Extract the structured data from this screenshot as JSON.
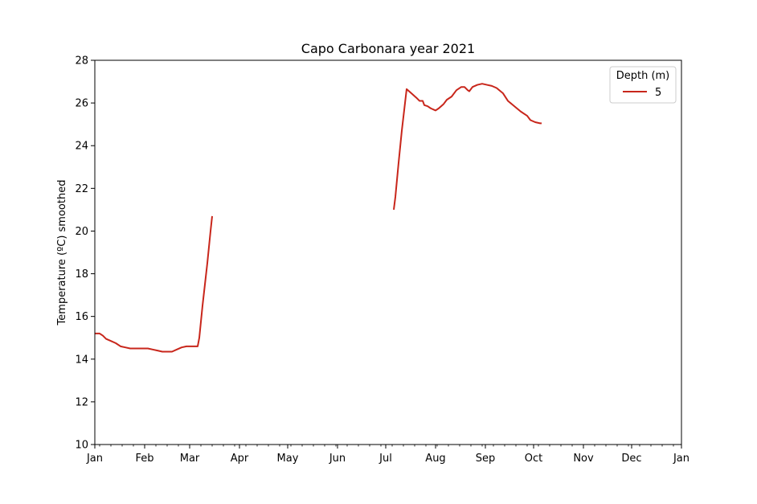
{
  "chart_data": {
    "type": "line",
    "title": "Capo Carbonara year 2021",
    "xlabel": "",
    "ylabel": "Temperature (ºC) smoothed",
    "ylim": [
      10,
      28
    ],
    "xlim": [
      "2021-01-01",
      "2022-01-01"
    ],
    "y_ticks": [
      10,
      12,
      14,
      16,
      18,
      20,
      22,
      24,
      26,
      28
    ],
    "x_ticks": [
      {
        "date": "2021-01-01",
        "label": "Jan"
      },
      {
        "date": "2021-02-01",
        "label": "Feb"
      },
      {
        "date": "2021-03-01",
        "label": "Mar"
      },
      {
        "date": "2021-04-01",
        "label": "Apr"
      },
      {
        "date": "2021-05-01",
        "label": "May"
      },
      {
        "date": "2021-06-01",
        "label": "Jun"
      },
      {
        "date": "2021-07-01",
        "label": "Jul"
      },
      {
        "date": "2021-08-01",
        "label": "Aug"
      },
      {
        "date": "2021-09-01",
        "label": "Sep"
      },
      {
        "date": "2021-10-01",
        "label": "Oct"
      },
      {
        "date": "2021-11-01",
        "label": "Nov"
      },
      {
        "date": "2021-12-01",
        "label": "Dec"
      },
      {
        "date": "2022-01-01",
        "label": "Jan"
      }
    ],
    "grid": false,
    "legend": {
      "title": "Depth (m)",
      "placement": "top-right"
    },
    "series": [
      {
        "name": "5",
        "color": "#c8261b",
        "segments": [
          [
            [
              "2021-01-01",
              15.2
            ],
            [
              "2021-01-04",
              15.2
            ],
            [
              "2021-01-06",
              15.1
            ],
            [
              "2021-01-08",
              14.95
            ],
            [
              "2021-01-11",
              14.85
            ],
            [
              "2021-01-14",
              14.75
            ],
            [
              "2021-01-17",
              14.6
            ],
            [
              "2021-01-20",
              14.55
            ],
            [
              "2021-01-23",
              14.5
            ],
            [
              "2021-01-26",
              14.5
            ],
            [
              "2021-01-29",
              14.5
            ],
            [
              "2021-02-01",
              14.5
            ],
            [
              "2021-02-03",
              14.5
            ],
            [
              "2021-02-06",
              14.45
            ],
            [
              "2021-02-09",
              14.4
            ],
            [
              "2021-02-12",
              14.35
            ],
            [
              "2021-02-15",
              14.35
            ],
            [
              "2021-02-18",
              14.35
            ],
            [
              "2021-02-21",
              14.45
            ],
            [
              "2021-02-24",
              14.55
            ],
            [
              "2021-02-27",
              14.6
            ],
            [
              "2021-03-02",
              14.6
            ],
            [
              "2021-03-06",
              14.6
            ],
            [
              "2021-03-07",
              15.0
            ],
            [
              "2021-03-09",
              16.5
            ],
            [
              "2021-03-12",
              18.5
            ],
            [
              "2021-03-14",
              20.0
            ],
            [
              "2021-03-15",
              20.7
            ]
          ],
          [
            [
              "2021-07-06",
              21.0
            ],
            [
              "2021-07-07",
              21.6
            ],
            [
              "2021-07-09",
              23.2
            ],
            [
              "2021-07-11",
              24.7
            ],
            [
              "2021-07-14",
              26.65
            ],
            [
              "2021-07-17",
              26.45
            ],
            [
              "2021-07-20",
              26.25
            ],
            [
              "2021-07-22",
              26.1
            ],
            [
              "2021-07-24",
              26.1
            ],
            [
              "2021-07-25",
              25.9
            ],
            [
              "2021-07-27",
              25.85
            ],
            [
              "2021-07-29",
              25.75
            ],
            [
              "2021-08-01",
              25.65
            ],
            [
              "2021-08-03",
              25.75
            ],
            [
              "2021-08-06",
              25.95
            ],
            [
              "2021-08-08",
              26.15
            ],
            [
              "2021-08-11",
              26.3
            ],
            [
              "2021-08-14",
              26.6
            ],
            [
              "2021-08-17",
              26.75
            ],
            [
              "2021-08-19",
              26.75
            ],
            [
              "2021-08-21",
              26.6
            ],
            [
              "2021-08-22",
              26.55
            ],
            [
              "2021-08-24",
              26.75
            ],
            [
              "2021-08-27",
              26.85
            ],
            [
              "2021-08-30",
              26.9
            ],
            [
              "2021-09-02",
              26.85
            ],
            [
              "2021-09-05",
              26.8
            ],
            [
              "2021-09-08",
              26.7
            ],
            [
              "2021-09-12",
              26.45
            ],
            [
              "2021-09-15",
              26.1
            ],
            [
              "2021-09-19",
              25.85
            ],
            [
              "2021-09-23",
              25.6
            ],
            [
              "2021-09-27",
              25.4
            ],
            [
              "2021-09-29",
              25.2
            ],
            [
              "2021-10-02",
              25.1
            ],
            [
              "2021-10-05",
              25.05
            ],
            [
              "2021-10-06",
              25.05
            ]
          ]
        ]
      }
    ]
  }
}
